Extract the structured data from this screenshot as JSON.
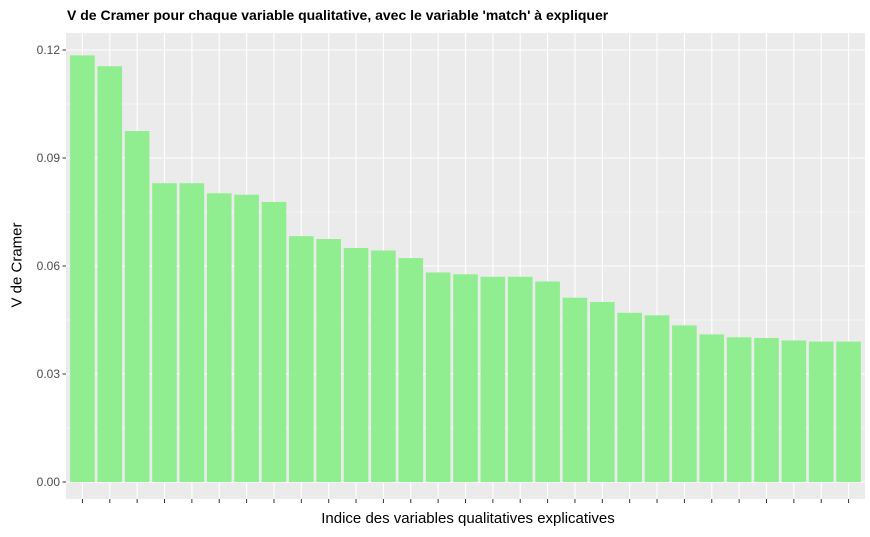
{
  "chart_data": {
    "type": "bar",
    "title": "V de Cramer pour chaque variable qualitative, avec le variable 'match' à expliquer",
    "xlabel": "Indice des variables qualitatives explicatives",
    "ylabel": "V de Cramer",
    "ylim": [
      0,
      0.12
    ],
    "yticks": [
      "0.00",
      "0.03",
      "0.06",
      "0.09",
      "0.12"
    ],
    "grid": true,
    "legend": "none",
    "bar_color": "#90EE90",
    "panel_color": "#EBEBEB",
    "values": [
      0.1185,
      0.1155,
      0.0975,
      0.083,
      0.083,
      0.0802,
      0.0798,
      0.0778,
      0.0683,
      0.0675,
      0.065,
      0.0643,
      0.0622,
      0.0582,
      0.0577,
      0.057,
      0.057,
      0.0557,
      0.0512,
      0.05,
      0.047,
      0.0463,
      0.0435,
      0.041,
      0.0402,
      0.04,
      0.0393,
      0.039,
      0.039
    ]
  }
}
